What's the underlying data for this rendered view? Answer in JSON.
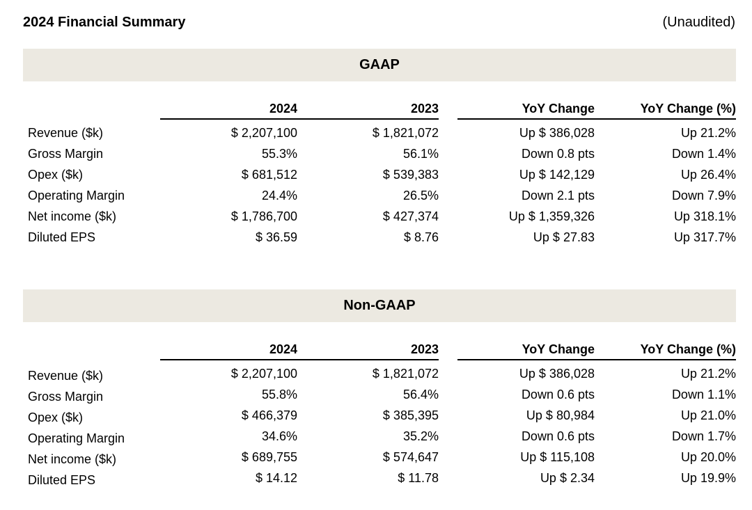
{
  "header": {
    "title": "2024 Financial Summary",
    "audit_note": "(Unaudited)"
  },
  "table_columns": {
    "col_2024": "2024",
    "col_2023": "2023",
    "col_yoy": "YoY Change",
    "col_yoy_pct": "YoY Change (%)"
  },
  "colors": {
    "section_banner_bg": "#ECE9E1",
    "text": "#000000"
  },
  "sections": [
    {
      "heading": "GAAP",
      "rows": [
        {
          "label": "Revenue ($k)",
          "v2024": "$ 2,207,100",
          "v2023": "$ 1,821,072",
          "yoy": "Up $ 386,028",
          "yoy_pct": "Up 21.2%"
        },
        {
          "label": "Gross Margin",
          "v2024": "55.3%",
          "v2023": "56.1%",
          "yoy": "Down 0.8 pts",
          "yoy_pct": "Down 1.4%"
        },
        {
          "label": "Opex ($k)",
          "v2024": "$ 681,512",
          "v2023": "$ 539,383",
          "yoy": "Up $ 142,129",
          "yoy_pct": "Up 26.4%"
        },
        {
          "label": "Operating Margin",
          "v2024": "24.4%",
          "v2023": "26.5%",
          "yoy": "Down 2.1 pts",
          "yoy_pct": "Down 7.9%"
        },
        {
          "label": "Net income ($k)",
          "v2024": "$ 1,786,700",
          "v2023": "$ 427,374",
          "yoy": "Up $ 1,359,326",
          "yoy_pct": "Up 318.1%"
        },
        {
          "label": "Diluted EPS",
          "v2024": "$ 36.59",
          "v2023": "$ 8.76",
          "yoy": "Up $ 27.83",
          "yoy_pct": "Up 317.7%"
        }
      ]
    },
    {
      "heading": "Non-GAAP",
      "rows": [
        {
          "label": "Revenue ($k)",
          "v2024": "$ 2,207,100",
          "v2023": "$ 1,821,072",
          "yoy": "Up $ 386,028",
          "yoy_pct": "Up 21.2%"
        },
        {
          "label": "Gross Margin",
          "v2024": "55.8%",
          "v2023": "56.4%",
          "yoy": "Down 0.6 pts",
          "yoy_pct": "Down 1.1%"
        },
        {
          "label": "Opex ($k)",
          "v2024": "$ 466,379",
          "v2023": "$ 385,395",
          "yoy": "Up $ 80,984",
          "yoy_pct": "Up 21.0%"
        },
        {
          "label": "Operating Margin",
          "v2024": "34.6%",
          "v2023": "35.2%",
          "yoy": "Down 0.6 pts",
          "yoy_pct": "Down 1.7%"
        },
        {
          "label": "Net income ($k)",
          "v2024": "$ 689,755",
          "v2023": "$ 574,647",
          "yoy": "Up $ 115,108",
          "yoy_pct": "Up 20.0%"
        },
        {
          "label": "Diluted EPS",
          "v2024": "$ 14.12",
          "v2023": "$ 11.78",
          "yoy": "Up $ 2.34",
          "yoy_pct": "Up 19.9%"
        }
      ]
    }
  ]
}
